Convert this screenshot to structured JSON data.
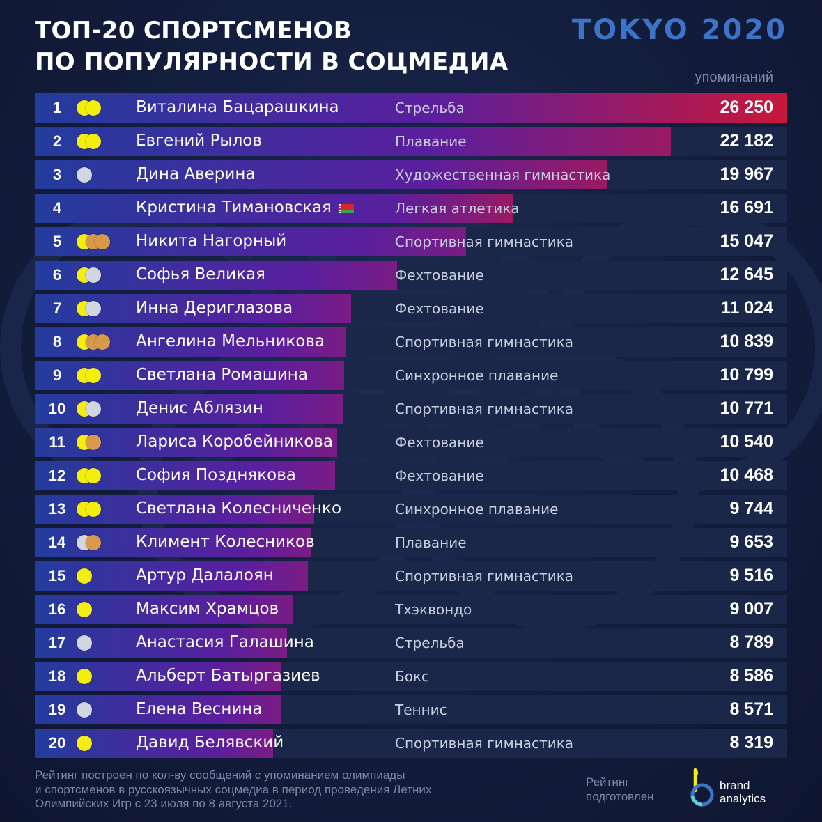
{
  "header": {
    "title_line1": "ТОП-20 СПОРТСМЕНОВ",
    "title_line2": "ПО ПОПУЛЯРНОСТИ В СОЦМЕДИА",
    "logo": "TOKYO 2020",
    "unit_label": "упоминаний"
  },
  "colors": {
    "bar_start": "#233c9e",
    "bar_mid": "#5a1f9e",
    "bar_end": "#c8173a",
    "row_bg": "#1b2749",
    "gold": "#f4ee0f",
    "silver": "#d2d6e0",
    "bronze": "#d89a4a",
    "logo_blue": "#3d74c8"
  },
  "chart_data": {
    "type": "bar",
    "orientation": "horizontal",
    "xlim": [
      0,
      26250
    ],
    "grid": false,
    "categories": [
      "Виталина Бацарашкина",
      "Евгений Рылов",
      "Дина Аверина",
      "Кристина Тимановская",
      "Никита Нагорный",
      "Софья Великая",
      "Инна Дериглазова",
      "Ангелина Мельникова",
      "Светлана Ромашина",
      "Денис Аблязин",
      "Лариса Коробейникова",
      "София Позднякова",
      "Светлана Колесниченко",
      "Климент Колесников",
      "Артур Далалоян",
      "Максим Храмцов",
      "Анастасия Галашина",
      "Альберт Батыргазиев",
      "Елена Веснина",
      "Давид Белявский"
    ],
    "values": [
      26250,
      22182,
      19967,
      16691,
      15047,
      12645,
      11024,
      10839,
      10799,
      10771,
      10540,
      10468,
      9744,
      9653,
      9516,
      9007,
      8789,
      8586,
      8571,
      8319
    ],
    "rows": [
      {
        "rank": "1",
        "name": "Виталина Бацарашкина",
        "sport": "Стрельба",
        "value": 26250,
        "value_label": "26 250",
        "medals": [
          "gold",
          "gold"
        ],
        "flag": false
      },
      {
        "rank": "2",
        "name": "Евгений Рылов",
        "sport": "Плавание",
        "value": 22182,
        "value_label": "22 182",
        "medals": [
          "gold",
          "gold"
        ],
        "flag": false
      },
      {
        "rank": "3",
        "name": "Дина Аверина",
        "sport": "Художественная гимнастика",
        "value": 19967,
        "value_label": "19 967",
        "medals": [
          "silver"
        ],
        "flag": false
      },
      {
        "rank": "4",
        "name": "Кристина Тимановская",
        "sport": "Легкая атлетика",
        "value": 16691,
        "value_label": "16 691",
        "medals": [],
        "flag": true
      },
      {
        "rank": "5",
        "name": "Никита Нагорный",
        "sport": "Спортивная гимнастика",
        "value": 15047,
        "value_label": "15 047",
        "medals": [
          "gold",
          "bronze",
          "bronze"
        ],
        "flag": false
      },
      {
        "rank": "6",
        "name": "Софья Великая",
        "sport": "Фехтование",
        "value": 12645,
        "value_label": "12 645",
        "medals": [
          "gold",
          "silver"
        ],
        "flag": false
      },
      {
        "rank": "7",
        "name": "Инна Дериглазова",
        "sport": "Фехтование",
        "value": 11024,
        "value_label": "11 024",
        "medals": [
          "gold",
          "silver"
        ],
        "flag": false
      },
      {
        "rank": "8",
        "name": "Ангелина Мельникова",
        "sport": "Спортивная гимнастика",
        "value": 10839,
        "value_label": "10 839",
        "medals": [
          "gold",
          "bronze",
          "bronze"
        ],
        "flag": false
      },
      {
        "rank": "9",
        "name": "Светлана Ромашина",
        "sport": "Синхронное плавание",
        "value": 10799,
        "value_label": "10 799",
        "medals": [
          "gold",
          "gold"
        ],
        "flag": false
      },
      {
        "rank": "10",
        "name": "Денис Аблязин",
        "sport": "Спортивная гимнастика",
        "value": 10771,
        "value_label": "10 771",
        "medals": [
          "gold",
          "silver"
        ],
        "flag": false
      },
      {
        "rank": "11",
        "name": "Лариса Коробейникова",
        "sport": "Фехтование",
        "value": 10540,
        "value_label": "10 540",
        "medals": [
          "gold",
          "bronze"
        ],
        "flag": false
      },
      {
        "rank": "12",
        "name": "София Позднякова",
        "sport": "Фехтование",
        "value": 10468,
        "value_label": "10 468",
        "medals": [
          "gold",
          "gold"
        ],
        "flag": false
      },
      {
        "rank": "13",
        "name": "Светлана Колесниченко",
        "sport": "Синхронное плавание",
        "value": 9744,
        "value_label": "9 744",
        "medals": [
          "gold",
          "gold"
        ],
        "flag": false
      },
      {
        "rank": "14",
        "name": "Климент Колесников",
        "sport": "Плавание",
        "value": 9653,
        "value_label": "9 653",
        "medals": [
          "silver",
          "bronze"
        ],
        "flag": false
      },
      {
        "rank": "15",
        "name": "Артур Далалоян",
        "sport": "Спортивная гимнастика",
        "value": 9516,
        "value_label": "9 516",
        "medals": [
          "gold"
        ],
        "flag": false
      },
      {
        "rank": "16",
        "name": "Максим Храмцов",
        "sport": "Тхэквондо",
        "value": 9007,
        "value_label": "9 007",
        "medals": [
          "gold"
        ],
        "flag": false
      },
      {
        "rank": "17",
        "name": "Анастасия Галашина",
        "sport": "Стрельба",
        "value": 8789,
        "value_label": "8 789",
        "medals": [
          "silver"
        ],
        "flag": false
      },
      {
        "rank": "18",
        "name": "Альберт Батыргазиев",
        "sport": "Бокс",
        "value": 8586,
        "value_label": "8 586",
        "medals": [
          "gold"
        ],
        "flag": false
      },
      {
        "rank": "19",
        "name": "Елена Веснина",
        "sport": "Теннис",
        "value": 8571,
        "value_label": "8 571",
        "medals": [
          "silver"
        ],
        "flag": false
      },
      {
        "rank": "20",
        "name": "Давид Белявский",
        "sport": "Спортивная гимнастика",
        "value": 8319,
        "value_label": "8 319",
        "medals": [
          "gold"
        ],
        "flag": false
      }
    ]
  },
  "footer": {
    "note_line1": "Рейтинг построен по кол-ву сообщений с упоминанием олимпиады",
    "note_line2": "и спортсменов в русскоязычных соцмедиа в период проведения Летних",
    "note_line3": "Олимпийских Игр с 23 июля по 8 августа 2021.",
    "credit_line1": "Рейтинг",
    "credit_line2": "подготовлен",
    "brand_line1": "brand",
    "brand_line2": "analytics"
  }
}
